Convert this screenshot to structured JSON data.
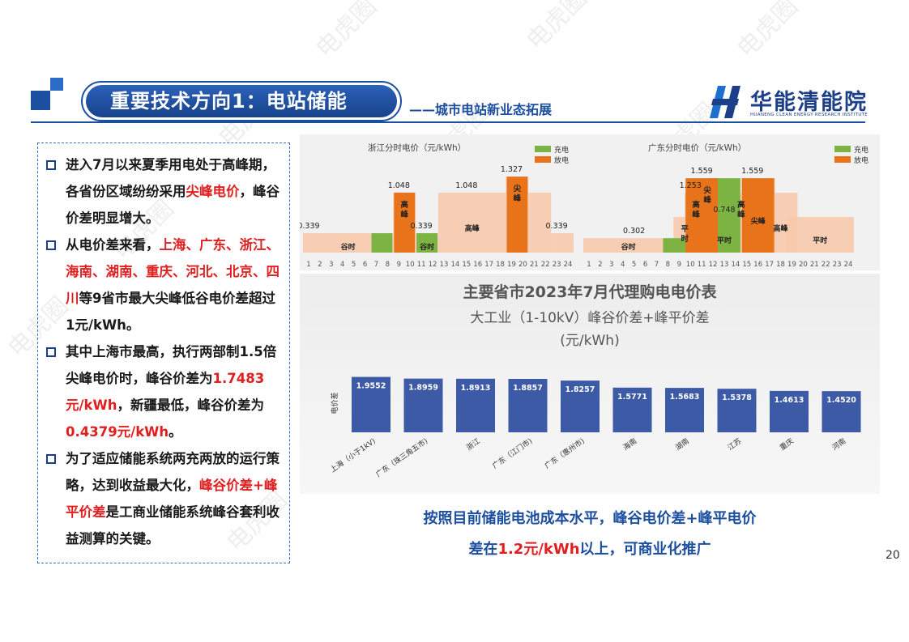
{
  "watermark": "电虎圈",
  "header": {
    "title": "重要技术方向1：电站储能",
    "subtitle": "——城市电站新业态拓展",
    "logo_name": "华能清能院",
    "logo_en": "HUANENG CLEAN ENERGY RESEARCH INSTITUTE"
  },
  "bullets": [
    {
      "segments": [
        {
          "text": "进入7月以来夏季用电处于高峰期，各省份区域纷纷采用",
          "red": false
        },
        {
          "text": "尖峰电价",
          "red": true
        },
        {
          "text": "，峰谷价差明显增大。",
          "red": false
        }
      ]
    },
    {
      "segments": [
        {
          "text": "从电价差来看，",
          "red": false
        },
        {
          "text": "上海、广东、浙江、海南、湖南、重庆、河北、北京、四川",
          "red": true
        },
        {
          "text": "等9省市最大尖峰低谷电价差超过1元/kWh。",
          "red": false
        }
      ]
    },
    {
      "segments": [
        {
          "text": "其中上海市最高，执行两部制1.5倍尖峰电价时，峰谷价差为",
          "red": false
        },
        {
          "text": "1.7483元/kWh",
          "red": true
        },
        {
          "text": "，新疆最低，峰谷价差为",
          "red": false
        },
        {
          "text": "0.4379元/kWh",
          "red": true
        },
        {
          "text": "。",
          "red": false
        }
      ]
    },
    {
      "segments": [
        {
          "text": "为了适应储能系统两充两放的运行策略，达到收益最大化，",
          "red": false
        },
        {
          "text": "峰谷价差+峰平价差",
          "red": true
        },
        {
          "text": "是工商业储能系统峰谷套利收益测算的关键。",
          "red": false
        }
      ]
    }
  ],
  "chart_data": [
    {
      "type": "bar",
      "title": "浙江分时电价（元/kWh）",
      "legend": [
        "充电",
        "放电"
      ],
      "legend_colors": {
        "充电": "#7cb342",
        "放电": "#e8731a"
      },
      "x_ticks": [
        "1",
        "2",
        "3",
        "4",
        "5",
        "6",
        "7",
        "8",
        "9",
        "10",
        "11",
        "12",
        "13",
        "14",
        "15",
        "16",
        "17",
        "18",
        "19",
        "20",
        "21",
        "22",
        "23",
        "24"
      ],
      "segments": [
        {
          "from": 1,
          "to": 8,
          "value": 0.339,
          "label": "谷时"
        },
        {
          "from": 9,
          "to": 10,
          "value": 1.048,
          "label": "高峰"
        },
        {
          "from": 11,
          "to": 12,
          "value": 0.339,
          "label": "谷时"
        },
        {
          "from": 13,
          "to": 18,
          "value": 1.048,
          "label": "高峰"
        },
        {
          "from": 19,
          "to": 20,
          "value": 1.327,
          "label": "尖峰"
        },
        {
          "from": 21,
          "to": 22,
          "value": 1.048,
          "label": ""
        },
        {
          "from": 23,
          "to": 24,
          "value": 0.339,
          "label": ""
        }
      ],
      "value_labels": [
        {
          "hour": 1,
          "text": "0.339"
        },
        {
          "hour": 9,
          "text": "1.048"
        },
        {
          "hour": 11,
          "text": "0.339"
        },
        {
          "hour": 15,
          "text": "1.048"
        },
        {
          "hour": 19,
          "text": "1.327"
        },
        {
          "hour": 23,
          "text": "0.339"
        }
      ],
      "charge_bars": [
        {
          "from": 7,
          "to": 8
        },
        {
          "from": 11,
          "to": 12
        }
      ],
      "discharge_bars": [
        {
          "from": 9,
          "to": 10
        },
        {
          "from": 19,
          "to": 20
        }
      ],
      "ylim": [
        0,
        1.5
      ]
    },
    {
      "type": "bar",
      "title": "广东分时电价（元/kWh）",
      "legend": [
        "充电",
        "放电"
      ],
      "legend_colors": {
        "充电": "#7cb342",
        "放电": "#e8731a"
      },
      "x_ticks": [
        "1",
        "2",
        "3",
        "4",
        "5",
        "6",
        "7",
        "8",
        "9",
        "10",
        "11",
        "12",
        "13",
        "14",
        "15",
        "16",
        "17",
        "18",
        "19",
        "20",
        "21",
        "22",
        "23",
        "24"
      ],
      "segments": [
        {
          "from": 1,
          "to": 8,
          "value": 0.302,
          "label": "谷时"
        },
        {
          "from": 9,
          "to": 10,
          "value": 0.748,
          "label": "平时"
        },
        {
          "from": 10,
          "to": 11,
          "value": 1.253,
          "label": "高峰"
        },
        {
          "from": 11,
          "to": 12,
          "value": 1.559,
          "label": "尖峰"
        },
        {
          "from": 12,
          "to": 14,
          "value": 0.748,
          "label": "平时"
        },
        {
          "from": 14,
          "to": 15,
          "value": 1.253,
          "label": "高峰"
        },
        {
          "from": 15,
          "to": 17,
          "value": 1.559,
          "label": "尖峰"
        },
        {
          "from": 17,
          "to": 19,
          "value": 1.253,
          "label": "高峰"
        },
        {
          "from": 19,
          "to": 24,
          "value": 0.748,
          "label": "平时"
        }
      ],
      "value_labels": [
        {
          "hour": 5,
          "text": "0.302"
        },
        {
          "hour": 10,
          "text": "1.253"
        },
        {
          "hour": 11,
          "text": "1.559"
        },
        {
          "hour": 13,
          "text": "0.748"
        },
        {
          "hour": 15.5,
          "text": "1.559"
        }
      ],
      "charge_bars": [
        {
          "from": 8,
          "to": 10
        },
        {
          "from": 12,
          "to": 14
        }
      ],
      "discharge_bars": [
        {
          "from": 10,
          "to": 12
        },
        {
          "from": 15,
          "to": 17
        }
      ],
      "ylim": [
        0,
        1.8
      ]
    },
    {
      "type": "bar",
      "title": "主要省市2023年7月代理购电电价表",
      "subtitle_line1": "大工业（1-10kV）峰谷价差+峰平价差",
      "subtitle_line2": "(元/kWh)",
      "ylabel": "电价差",
      "categories": [
        "上海（小于1kV)",
        "广东（珠三角五市)",
        "浙江",
        "广东（江门市)",
        "广东（惠州市)",
        "海南",
        "湖南",
        "江苏",
        "重庆",
        "河南"
      ],
      "values": [
        1.9552,
        1.8959,
        1.8913,
        1.8857,
        1.8257,
        1.5771,
        1.5683,
        1.5378,
        1.4613,
        1.452
      ],
      "value_labels": [
        "1.9552",
        "1.8959",
        "1.8913",
        "1.8857",
        "1.8257",
        "1.5771",
        "1.5683",
        "1.5378",
        "1.4613",
        "1.4520"
      ],
      "bar_color": "#3c5aa6",
      "ylim": [
        0,
        2.2
      ]
    }
  ],
  "footer": {
    "line1": "按照目前储能电池成本水平，峰谷电价差+峰平电价",
    "line2_pre": "差在",
    "line2_red": "1.2元/kWh",
    "line2_post": "以上，可商业化推广"
  },
  "page_number": "20"
}
